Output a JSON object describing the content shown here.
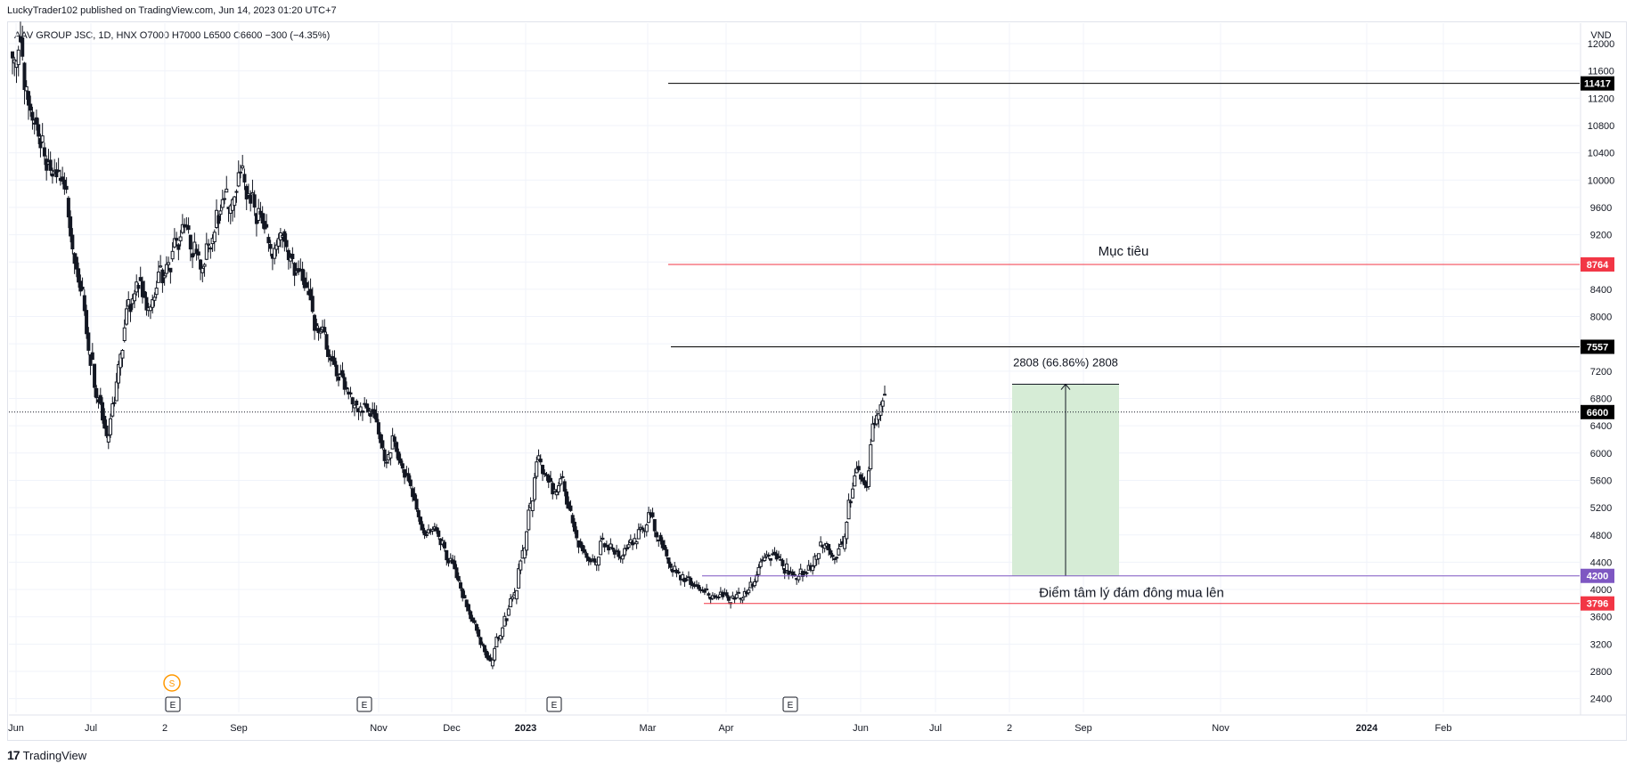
{
  "header": {
    "published": "LuckyTrader102 published on TradingView.com, Jun 14, 2023 01:20 UTC+7"
  },
  "legend": {
    "text": "AAV GROUP JSC, 1D, HNX  O7000  H7000  L6500  C6600  −300 (−4.35%)"
  },
  "footer": {
    "brand": "TradingView",
    "logo": "17"
  },
  "chart_data": {
    "type": "candlestick",
    "symbol": "AAV GROUP JSC",
    "interval": "1D",
    "exchange": "HNX",
    "ohlc_last": {
      "open": 7000,
      "high": 7000,
      "low": 6500,
      "close": 6600,
      "change": -300,
      "change_pct": -4.35
    },
    "currency": "VND",
    "ylim": [
      2200,
      12300
    ],
    "y_ticks": [
      12000,
      11600,
      11200,
      10800,
      10400,
      10000,
      9600,
      9200,
      8800,
      8400,
      8000,
      7600,
      7200,
      6800,
      6400,
      6000,
      5600,
      5200,
      4800,
      4400,
      4000,
      3600,
      3200,
      2800,
      2400
    ],
    "x_ticks": [
      "Jun",
      "Jul",
      "2",
      "Sep",
      "Nov",
      "Dec",
      "2023",
      "Mar",
      "Apr",
      "Jun",
      "Jul",
      "2",
      "Sep",
      "Nov",
      "2024",
      "Feb"
    ],
    "bold_x_ticks": [
      "2023",
      "2024"
    ],
    "price_close_series": [
      12000,
      11400,
      10900,
      10500,
      10100,
      10000,
      9800,
      8900,
      8300,
      7400,
      6800,
      6200,
      6700,
      7600,
      8200,
      8500,
      8100,
      8300,
      8600,
      8800,
      9100,
      9300,
      9000,
      8800,
      9100,
      9500,
      9700,
      9900,
      10100,
      9700,
      9500,
      9200,
      9000,
      9300,
      8900,
      8600,
      8300,
      7900,
      7800,
      7400,
      7100,
      6900,
      6800,
      6700,
      6600,
      6300,
      5900,
      6200,
      5800,
      5500,
      5100,
      4800,
      4900,
      4700,
      4400,
      4100,
      3800,
      3500,
      3200,
      2900,
      3300,
      3600,
      3900,
      4500,
      5200,
      5900,
      5700,
      5400,
      5600,
      5100,
      4700,
      4500,
      4400,
      4700,
      4600,
      4500,
      4600,
      4700,
      4900,
      5100,
      4800,
      4500,
      4300,
      4200,
      4100,
      4000,
      3950,
      3900,
      3900,
      3850,
      3900,
      3950,
      4100,
      4400,
      4500,
      4400,
      4300,
      4200,
      4250,
      4300,
      4600,
      4700,
      4500,
      4600,
      5300,
      5700,
      5500,
      6400,
      6800,
      6600
    ],
    "current_price": 6600,
    "horizontal_lines": [
      {
        "price": 11417,
        "label": "11417",
        "color": "#000000"
      },
      {
        "price": 8764,
        "label": "8764",
        "color": "#f23645",
        "annotation": "Mục tiêu"
      },
      {
        "price": 7557,
        "label": "7557",
        "color": "#000000"
      },
      {
        "price": 4200,
        "label": "4200",
        "color": "#7e57c2",
        "annotation": "Điểm tâm lý đám đông mua lên"
      },
      {
        "price": 3796,
        "label": "3796",
        "color": "#f23645"
      }
    ],
    "price_range": {
      "from": 4200,
      "to": 7008,
      "label": "2808 (66.86%) 2808",
      "fill": "#d6ecd6"
    },
    "earnings_markers": [
      "E",
      "E",
      "E",
      "E"
    ],
    "split_marker": "S",
    "colors": {
      "candle": "#131722",
      "grid": "#f0f3fa",
      "current_price_label": "#000000"
    }
  }
}
